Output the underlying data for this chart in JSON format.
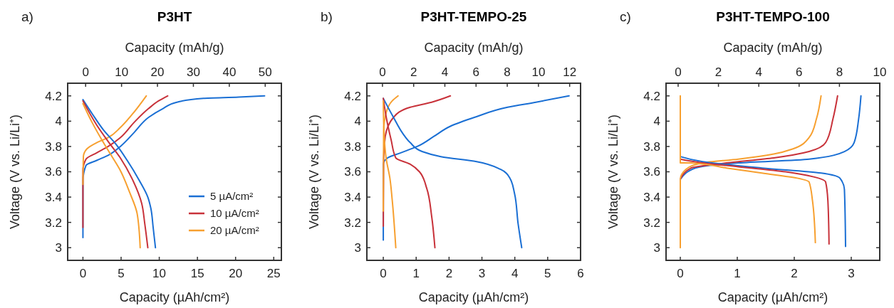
{
  "chart_data": [
    {
      "type": "line",
      "title": "P3HT",
      "annotations": [
        "a)"
      ],
      "xlabel": "Capacity (µAh/cm²)",
      "x2label": "Capacity (mAh/g)",
      "ylabel": "Voltage (V vs. Li/Li⁺)",
      "xlim": [
        -2,
        26
      ],
      "xticks": [
        0,
        5,
        10,
        15,
        20,
        25
      ],
      "x2lim": [
        -5,
        54.5
      ],
      "x2ticks": [
        0,
        10,
        20,
        30,
        40,
        50
      ],
      "ylim": [
        2.9,
        4.3
      ],
      "yticks": [
        3,
        3.2,
        3.4,
        3.6,
        3.8,
        4,
        4.2
      ],
      "legend": "bottom right",
      "series": [
        {
          "name": "5 µA/cm²",
          "color": "#1a6fd4",
          "x": [
            0,
            0,
            0.4,
            1.8,
            3.3,
            4.9,
            6.7,
            8.6,
            10.5,
            12.3,
            15.8,
            20.4,
            23.8
          ],
          "values": [
            3.08,
            3.53,
            3.65,
            3.69,
            3.73,
            3.8,
            3.91,
            4.03,
            4.1,
            4.15,
            4.18,
            4.19,
            4.2
          ]
        },
        {
          "name": "10 µA/cm²",
          "color": "#c8323a",
          "x": [
            0,
            0,
            0.4,
            1.8,
            3.3,
            4.9,
            6.7,
            8.6,
            9.9,
            11.1
          ],
          "values": [
            3.16,
            3.61,
            3.7,
            3.75,
            3.8,
            3.87,
            3.99,
            4.1,
            4.16,
            4.2
          ]
        },
        {
          "name": "20 µA/cm²",
          "color": "#f7a030",
          "x": [
            0,
            0.06,
            0.5,
            1.8,
            3.3,
            4.9,
            6.4,
            8.3
          ],
          "values": [
            3.5,
            3.72,
            3.78,
            3.83,
            3.87,
            3.95,
            4.05,
            4.2
          ]
        },
        {
          "color": "#1a6fd4",
          "x": [
            0,
            1.2,
            2.7,
            4.3,
            5.8,
            7.4,
            8.5,
            8.9,
            9.2,
            9.5
          ],
          "values": [
            4.17,
            4.06,
            3.93,
            3.82,
            3.69,
            3.53,
            3.4,
            3.31,
            3.16,
            3.0
          ]
        },
        {
          "color": "#c8323a",
          "x": [
            0,
            1.8,
            3.3,
            4.9,
            6.4,
            7.7,
            8.1,
            8.5
          ],
          "values": [
            4.16,
            3.97,
            3.84,
            3.71,
            3.55,
            3.35,
            3.19,
            3.0
          ]
        },
        {
          "color": "#f7a030",
          "x": [
            0,
            1.2,
            2.4,
            3.6,
            4.9,
            6.1,
            7.1,
            7.5
          ],
          "values": [
            4.14,
            3.99,
            3.86,
            3.74,
            3.61,
            3.44,
            3.27,
            3.0
          ]
        }
      ]
    },
    {
      "type": "line",
      "title": "P3HT-TEMPO-25",
      "annotations": [
        "b)"
      ],
      "xlabel": "Capacity (µAh/cm²)",
      "x2label": "Capacity (mAh/g)",
      "ylabel": "Voltage (V vs. Li/Li⁺)",
      "xlim": [
        -0.5,
        6
      ],
      "xticks": [
        0,
        1,
        2,
        3,
        4,
        5,
        6
      ],
      "x2lim": [
        -1,
        12.7
      ],
      "x2ticks": [
        0,
        2,
        4,
        6,
        8,
        10,
        12
      ],
      "ylim": [
        2.9,
        4.3
      ],
      "yticks": [
        3,
        3.2,
        3.4,
        3.6,
        3.8,
        4,
        4.2
      ],
      "series": [
        {
          "color": "#1a6fd4",
          "x": [
            0,
            0,
            0.13,
            0.53,
            1.03,
            1.54,
            2.04,
            2.77,
            3.78,
            4.64,
            5.65
          ],
          "values": [
            3.06,
            3.66,
            3.71,
            3.75,
            3.8,
            3.88,
            3.96,
            4.03,
            4.11,
            4.15,
            4.2
          ]
        },
        {
          "color": "#c8323a",
          "x": [
            0,
            0.01,
            0.06,
            0.31,
            0.82,
            1.47,
            2.04
          ],
          "values": [
            3.17,
            3.7,
            3.88,
            4.03,
            4.11,
            4.15,
            4.2
          ]
        },
        {
          "color": "#f7a030",
          "x": [
            0,
            0.01,
            0.09,
            0.27,
            0.45
          ],
          "values": [
            3.29,
            3.92,
            4.07,
            4.16,
            4.2
          ]
        },
        {
          "color": "#1a6fd4",
          "x": [
            0,
            0.31,
            0.6,
            0.82,
            1.18,
            1.75,
            2.84,
            3.56,
            3.85,
            3.99,
            4.1,
            4.21
          ],
          "values": [
            4.18,
            4.03,
            3.9,
            3.83,
            3.76,
            3.72,
            3.68,
            3.62,
            3.55,
            3.43,
            3.19,
            3.0
          ]
        },
        {
          "color": "#c8323a",
          "x": [
            0,
            0.09,
            0.24,
            0.38,
            0.82,
            1.1,
            1.32,
            1.47,
            1.57
          ],
          "values": [
            4.18,
            4.03,
            3.85,
            3.71,
            3.66,
            3.6,
            3.47,
            3.25,
            3.0
          ]
        },
        {
          "color": "#f7a030",
          "x": [
            0,
            0.02,
            0.09,
            0.2,
            0.27,
            0.38
          ],
          "values": [
            4.16,
            3.92,
            3.7,
            3.55,
            3.38,
            3.0
          ]
        }
      ]
    },
    {
      "type": "line",
      "title": "P3HT-TEMPO-100",
      "annotations": [
        "c)"
      ],
      "xlabel": "Capacity (µAh/cm²)",
      "x2label": "Capacity (mAh/g)",
      "ylabel": "Voltage (V vs. Li/Li⁺)",
      "xlim": [
        -0.25,
        3.5
      ],
      "xticks": [
        0,
        1,
        2,
        3
      ],
      "x2lim": [
        -0.6,
        10
      ],
      "x2ticks": [
        0,
        2,
        4,
        6,
        8,
        10
      ],
      "ylim": [
        2.9,
        4.3
      ],
      "yticks": [
        3,
        3.2,
        3.4,
        3.6,
        3.8,
        4,
        4.2
      ],
      "series": [
        {
          "color": "#1a6fd4",
          "x": [
            0,
            0.27,
            1.02,
            2.26,
            2.88,
            3.05,
            3.13,
            3.17
          ],
          "values": [
            3.54,
            3.63,
            3.67,
            3.7,
            3.76,
            3.83,
            4.02,
            4.2
          ]
        },
        {
          "color": "#c8323a",
          "x": [
            0,
            0.19,
            0.81,
            1.64,
            2.26,
            2.55,
            2.68,
            2.76
          ],
          "values": [
            3.54,
            3.63,
            3.67,
            3.71,
            3.76,
            3.83,
            4.02,
            4.2
          ]
        },
        {
          "color": "#f7a030",
          "x": [
            0,
            0,
            0.1,
            0.39,
            1.02,
            1.64,
            1.97,
            2.26,
            2.39,
            2.47
          ],
          "values": [
            3.0,
            3.54,
            3.62,
            3.67,
            3.7,
            3.74,
            3.78,
            3.87,
            4.02,
            4.2
          ]
        },
        {
          "color": "#1a6fd4",
          "x": [
            0,
            0.39,
            1.43,
            2.47,
            2.8,
            2.88,
            2.9
          ],
          "values": [
            3.72,
            3.68,
            3.63,
            3.59,
            3.55,
            3.46,
            3.01
          ]
        },
        {
          "color": "#c8323a",
          "x": [
            0,
            0.39,
            1.02,
            1.85,
            2.34,
            2.55,
            2.59,
            2.61
          ],
          "values": [
            3.7,
            3.67,
            3.64,
            3.6,
            3.56,
            3.52,
            3.37,
            3.03
          ]
        },
        {
          "color": "#f7a030",
          "x": [
            0,
            0,
            0.19,
            0.81,
            1.43,
            2.05,
            2.26,
            2.32,
            2.37
          ],
          "values": [
            4.2,
            3.67,
            3.67,
            3.63,
            3.59,
            3.55,
            3.52,
            3.37,
            3.04
          ]
        }
      ]
    }
  ]
}
